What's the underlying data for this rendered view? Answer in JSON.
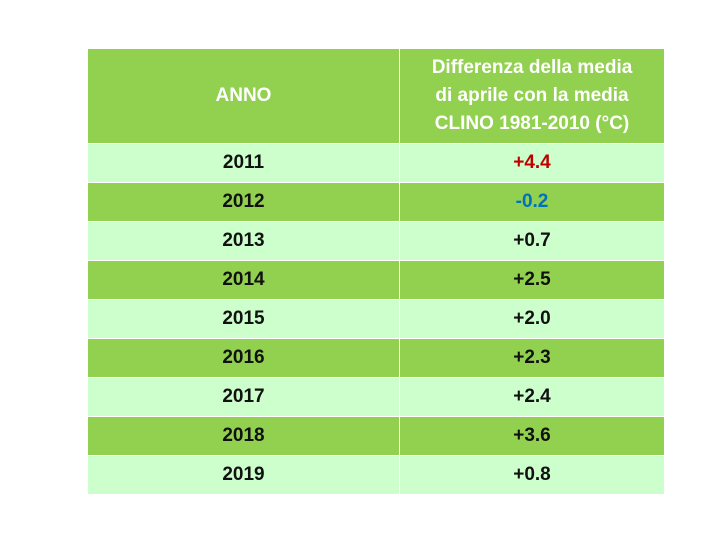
{
  "table": {
    "headers": {
      "year": "ANNO",
      "diff_lines": [
        "Differenza  della media",
        "di aprile con la media",
        "CLINO 1981-2010 (°C)"
      ]
    },
    "rows": [
      {
        "year": "2011",
        "value": "+4.4",
        "value_color": "#c00000"
      },
      {
        "year": "2012",
        "value": "-0.2",
        "value_color": "#0070c0"
      },
      {
        "year": "2013",
        "value": "+0.7",
        "value_color": "#111111"
      },
      {
        "year": "2014",
        "value": "+2.5",
        "value_color": "#111111"
      },
      {
        "year": "2015",
        "value": "+2.0",
        "value_color": "#111111"
      },
      {
        "year": "2016",
        "value": "+2.3",
        "value_color": "#111111"
      },
      {
        "year": "2017",
        "value": "+2.4",
        "value_color": "#111111"
      },
      {
        "year": "2018",
        "value": "+3.6",
        "value_color": "#111111"
      },
      {
        "year": "2019",
        "value": "+0.8",
        "value_color": "#111111"
      }
    ]
  },
  "colors": {
    "header_bg": "#92d050",
    "row_light": "#ccffcc",
    "row_dark": "#92d050"
  }
}
